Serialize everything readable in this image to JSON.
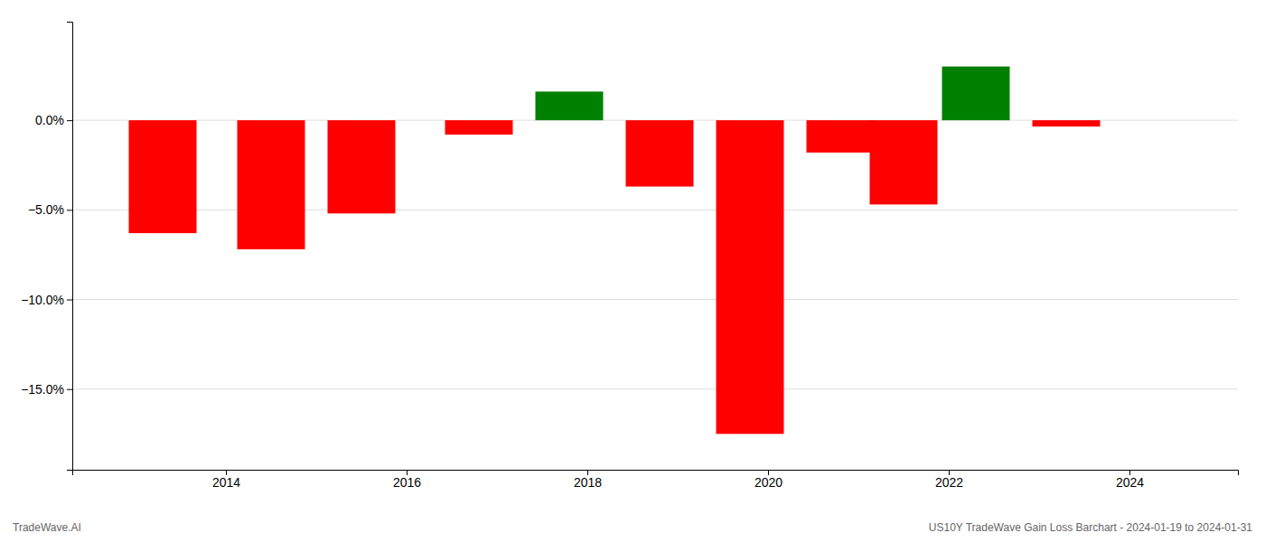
{
  "chart_data": {
    "type": "bar",
    "x": [
      2013.3,
      2014.5,
      2015.5,
      2016.8,
      2017.8,
      2018.8,
      2019.8,
      2020.8,
      2021.5,
      2022.3,
      2023.3
    ],
    "values": [
      -6.3,
      -7.2,
      -5.2,
      -0.8,
      1.6,
      -3.7,
      -17.5,
      -1.8,
      -4.7,
      3.0,
      -0.35
    ],
    "colors": [
      "#FF0000",
      "#FF0000",
      "#FF0000",
      "#FF0000",
      "#008000",
      "#FF0000",
      "#FF0000",
      "#FF0000",
      "#FF0000",
      "#008000",
      "#FF0000"
    ],
    "xlim": [
      2012.3,
      2025.2
    ],
    "xticks": [
      2014,
      2016,
      2018,
      2020,
      2022,
      2024
    ],
    "ylim": [
      -19.5,
      5.5
    ],
    "yticks": [
      {
        "value": 0,
        "label": "0.0%"
      },
      {
        "value": -5.0,
        "label": "−5.0%"
      },
      {
        "value": -10.0,
        "label": "−10.0%"
      },
      {
        "value": -15.0,
        "label": "−15.0%"
      }
    ],
    "grid": true,
    "annotations": [
      "TradeWave.AI",
      "US10Y TradeWave Gain Loss Barchart - 2024-01-19 to 2024-01-31"
    ]
  }
}
